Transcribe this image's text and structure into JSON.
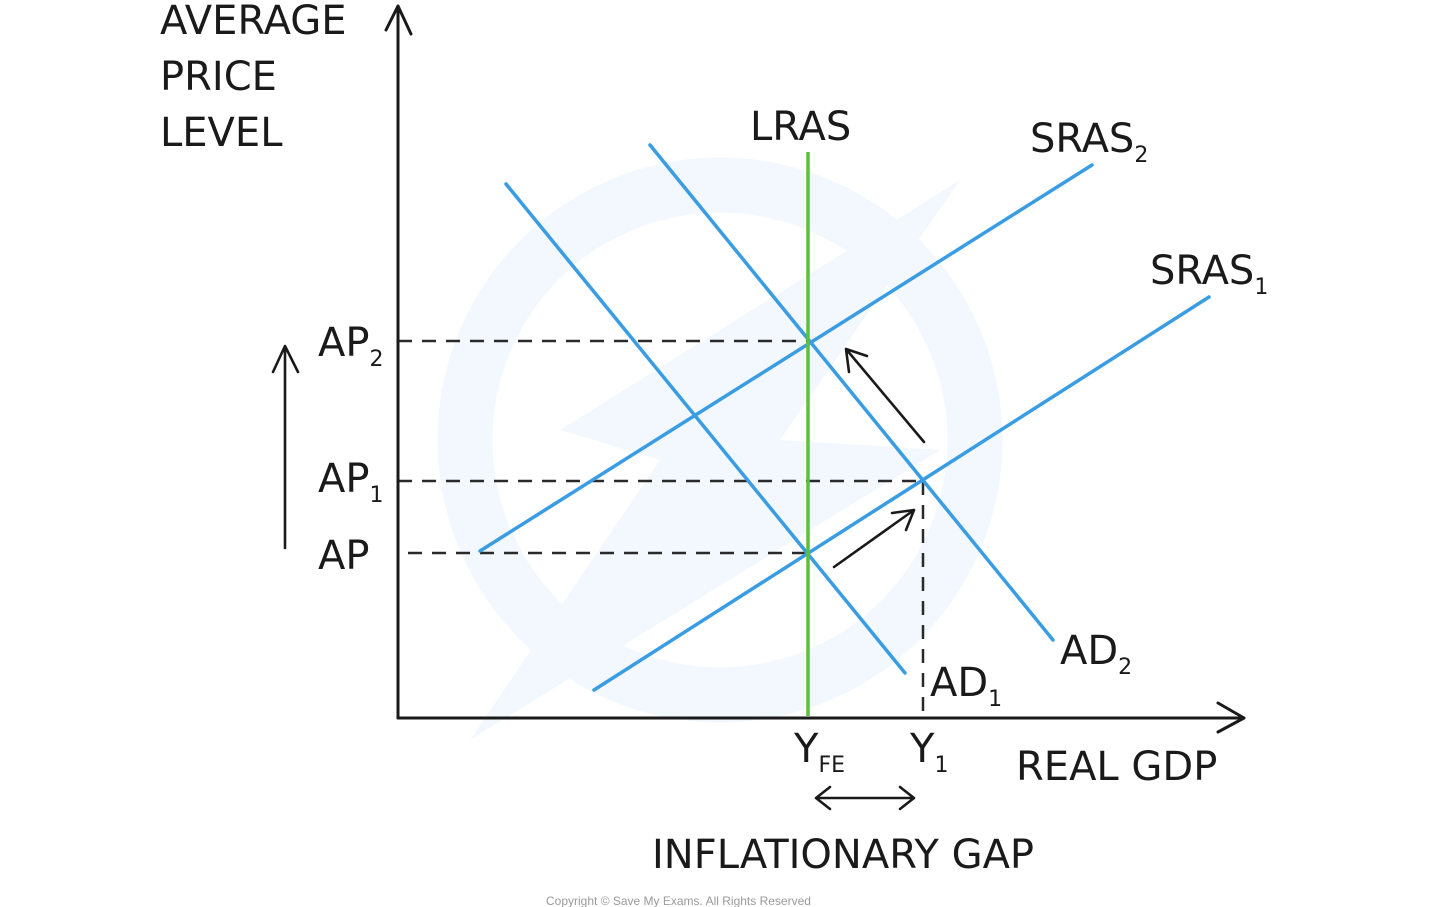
{
  "axes": {
    "y_label_lines": [
      "AVERAGE",
      "PRICE",
      "LEVEL"
    ],
    "x_label": "REAL GDP"
  },
  "curves": {
    "lras": "LRAS",
    "sras2_main": "SRAS",
    "sras2_sub": "2",
    "sras1_main": "SRAS",
    "sras1_sub": "1",
    "ad1_main": "AD",
    "ad1_sub": "1",
    "ad2_main": "AD",
    "ad2_sub": "2"
  },
  "price_levels": {
    "ap2_main": "AP",
    "ap2_sub": "2",
    "ap1_main": "AP",
    "ap1_sub": "1",
    "ap": "AP"
  },
  "output_levels": {
    "yfe_main": "Y",
    "yfe_sub": "FE",
    "y1_main": "Y",
    "y1_sub": "1"
  },
  "gap_label": "INFLATIONARY GAP",
  "copyright": "Copyright © Save My Exams. All Rights Reserved",
  "colors": {
    "demand_supply_curves": "#3a9de3",
    "lras": "#5cc13a",
    "ink": "#1a1a1a"
  }
}
